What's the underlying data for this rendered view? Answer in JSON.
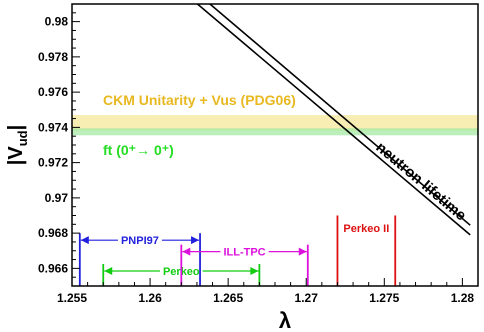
{
  "chart_data": {
    "type": "line",
    "xlabel": "λ",
    "ylabel": "|V",
    "ylabel_sub": "ud",
    "xlim": [
      1.255,
      1.281
    ],
    "ylim": [
      0.965,
      0.981
    ],
    "x_ticks": [
      1.255,
      1.26,
      1.265,
      1.27,
      1.275,
      1.28
    ],
    "x_tick_labels": [
      "1.255",
      "1.26",
      "1.265",
      "1.27",
      "1.275",
      "1.28"
    ],
    "y_ticks": [
      0.966,
      0.968,
      0.97,
      0.972,
      0.974,
      0.976,
      0.978,
      0.98
    ],
    "y_tick_labels": [
      "0.966",
      "0.968",
      "0.97",
      "0.972",
      "0.974",
      "0.976",
      "0.978",
      "0.98"
    ],
    "grid": false,
    "bands": [
      {
        "label": "CKM Unitarity + Vus (PDG06)",
        "ymin": 0.9738,
        "ymax": 0.9747,
        "color": "#f5e79a",
        "label_color": "#e8b820"
      },
      {
        "label": "ft (0⁺→ 0⁺)",
        "ymin": 0.97355,
        "ymax": 0.97395,
        "color": "#a6eaa6",
        "label_color": "#22dd22"
      }
    ],
    "series": [
      {
        "name": "neutron lifetime",
        "x": [
          1.2625,
          1.2805
        ],
        "y": [
          0.9814,
          0.9679
        ],
        "color": "#000000"
      },
      {
        "name": "neutron lifetime",
        "x": [
          1.2633,
          1.2805
        ],
        "y": [
          0.9814,
          0.96845
        ],
        "color": "#000000"
      }
    ],
    "measurements": [
      {
        "label": "PNPI97",
        "low": 1.2555,
        "high": 1.2632,
        "color": "#2222dd",
        "y": 0.9676
      },
      {
        "label": "Perkeo",
        "low": 1.257,
        "high": 1.267,
        "color": "#11cc11",
        "y": 0.96585
      },
      {
        "label": "ILL-TPC",
        "low": 1.262,
        "high": 1.2701,
        "color": "#dd11dd",
        "y": 0.96695
      },
      {
        "label": "Perkeo II",
        "low": 1.272,
        "high": 1.2757,
        "color": "#dd1111",
        "y": 0.9683
      }
    ],
    "curve_label": "neutron lifetime"
  }
}
